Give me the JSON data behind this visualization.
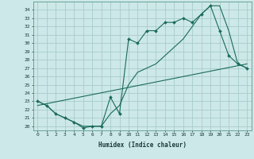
{
  "xlabel": "Humidex (Indice chaleur)",
  "bg_color": "#cde8e8",
  "grid_color": "#a8cccc",
  "line_color": "#1a6b5a",
  "xlim": [
    -0.5,
    23.5
  ],
  "ylim": [
    19.5,
    35.0
  ],
  "xticks": [
    0,
    1,
    2,
    3,
    4,
    5,
    6,
    7,
    8,
    9,
    10,
    11,
    12,
    13,
    14,
    15,
    16,
    17,
    18,
    19,
    20,
    21,
    22,
    23
  ],
  "yticks": [
    20,
    21,
    22,
    23,
    24,
    25,
    26,
    27,
    28,
    29,
    30,
    31,
    32,
    33,
    34
  ],
  "line1_x": [
    0,
    1,
    2,
    3,
    4,
    5,
    6,
    7,
    8,
    9,
    10,
    11,
    12,
    13,
    14,
    15,
    16,
    17,
    18,
    19,
    20,
    21,
    22,
    23
  ],
  "line1_y": [
    23.0,
    22.5,
    21.5,
    21.0,
    20.5,
    19.8,
    20.0,
    20.0,
    23.5,
    21.5,
    30.5,
    30.0,
    31.5,
    31.5,
    32.5,
    32.5,
    33.0,
    32.5,
    33.5,
    34.5,
    31.5,
    28.5,
    27.5,
    27.0
  ],
  "line2_x": [
    0,
    1,
    2,
    3,
    4,
    5,
    6,
    7,
    8,
    9,
    10,
    11,
    12,
    13,
    14,
    15,
    16,
    17,
    18,
    19,
    20,
    21,
    22,
    23
  ],
  "line2_y": [
    23.0,
    22.5,
    21.5,
    21.0,
    20.5,
    20.0,
    20.0,
    20.0,
    21.5,
    22.5,
    25.0,
    26.5,
    27.0,
    27.5,
    28.5,
    29.5,
    30.5,
    32.0,
    33.5,
    34.5,
    34.5,
    31.5,
    27.5,
    27.0
  ],
  "line3_x": [
    0,
    23
  ],
  "line3_y": [
    22.5,
    27.5
  ]
}
